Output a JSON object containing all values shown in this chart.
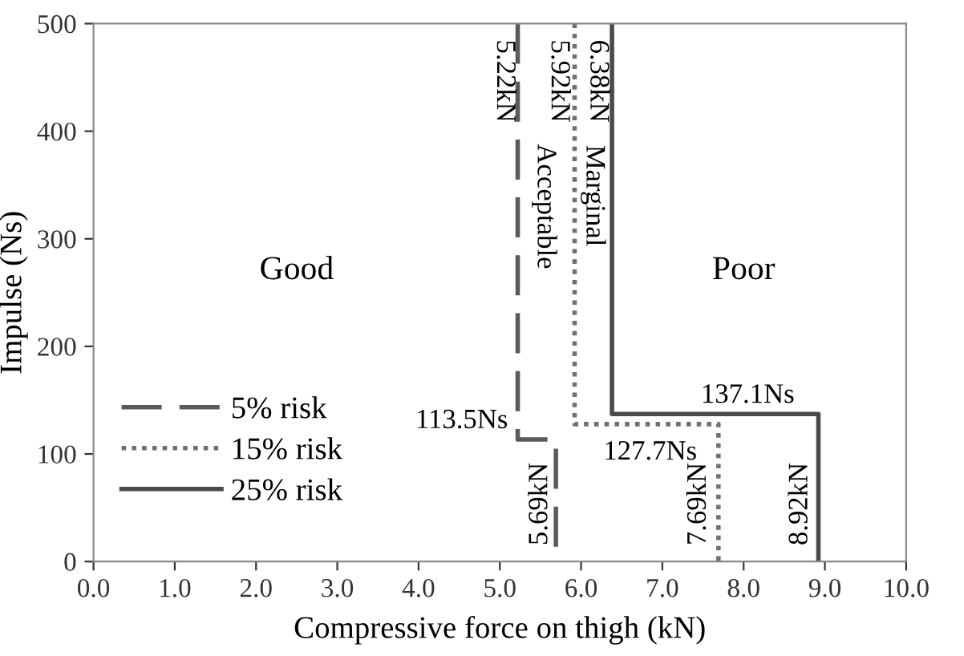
{
  "chart_data": {
    "type": "line",
    "xlabel": "Compressive force on thigh (kN)",
    "ylabel": "Impulse (Ns)",
    "xlim": [
      0,
      10
    ],
    "xticks": [
      {
        "value": 0,
        "label": "0.0"
      },
      {
        "value": 1,
        "label": "1.0"
      },
      {
        "value": 2,
        "label": "2.0"
      },
      {
        "value": 3,
        "label": "3.0"
      },
      {
        "value": 4,
        "label": "4.0"
      },
      {
        "value": 5,
        "label": "5.0"
      },
      {
        "value": 6,
        "label": "6.0"
      },
      {
        "value": 7,
        "label": "7.0"
      },
      {
        "value": 8,
        "label": "8.0"
      },
      {
        "value": 9,
        "label": "9.0"
      },
      {
        "value": 10,
        "label": "10.0"
      }
    ],
    "ylim": [
      0,
      500
    ],
    "yticks": [
      0,
      100,
      200,
      300,
      400,
      500
    ],
    "grid": false,
    "legend": "bottom left",
    "marker": "none",
    "series": [
      {
        "name": "5% risk",
        "color": "#5a5a5a",
        "line_style": "dashed",
        "x": [
          5.22,
          5.22,
          5.69,
          5.69
        ],
        "values": [
          500,
          113.5,
          113.5,
          0
        ]
      },
      {
        "name": "15% risk",
        "color": "#707070",
        "line_style": "dotted",
        "x": [
          5.92,
          5.92,
          7.69,
          7.69
        ],
        "values": [
          500,
          127.7,
          127.7,
          0
        ]
      },
      {
        "name": "25% risk",
        "color": "#4a4a4a",
        "line_style": "solid",
        "x": [
          6.38,
          6.38,
          8.92,
          8.92
        ],
        "values": [
          500,
          137.1,
          137.1,
          0
        ]
      }
    ],
    "annotations": [
      {
        "text": "5.22kN",
        "x": 5.22,
        "y": 500
      },
      {
        "text": "5.92kN",
        "x": 5.92,
        "y": 500
      },
      {
        "text": "6.38kN",
        "x": 6.38,
        "y": 500
      },
      {
        "text": "5.69kN",
        "x": 5.69,
        "y": 0
      },
      {
        "text": "7.69kN",
        "x": 7.69,
        "y": 0
      },
      {
        "text": "8.92kN",
        "x": 8.92,
        "y": 0
      },
      {
        "text": "113.5Ns",
        "x": 5.22,
        "y": 113.5
      },
      {
        "text": "127.7Ns",
        "x": 7.69,
        "y": 127.7
      },
      {
        "text": "137.1Ns",
        "x": 8.92,
        "y": 137.1
      },
      "Good",
      "Poor",
      "Acceptable",
      "Marginal"
    ]
  }
}
